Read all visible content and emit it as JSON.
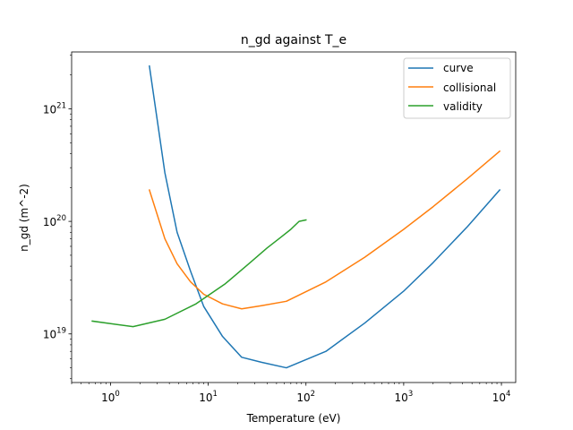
{
  "chart_data": {
    "type": "line",
    "title": "n_gd against T_e",
    "xlabel": "Temperature (eV)",
    "ylabel": "n_gd (m^-2)",
    "xscale": "log",
    "yscale": "log",
    "xlim": [
      0.4,
      14000
    ],
    "ylim": [
      3.7e+18,
      3.2e+21
    ],
    "grid": false,
    "legend_position": "top-right",
    "x_ticks": [
      {
        "base": "10",
        "exp": "0",
        "value": 1
      },
      {
        "base": "10",
        "exp": "1",
        "value": 10
      },
      {
        "base": "10",
        "exp": "2",
        "value": 100
      },
      {
        "base": "10",
        "exp": "3",
        "value": 1000
      },
      {
        "base": "10",
        "exp": "4",
        "value": 10000
      }
    ],
    "y_ticks": [
      {
        "base": "10",
        "exp": "19",
        "value": 1e+19
      },
      {
        "base": "10",
        "exp": "20",
        "value": 1e+20
      },
      {
        "base": "10",
        "exp": "21",
        "value": 1e+21
      }
    ],
    "series": [
      {
        "name": "curve",
        "color": "#1f77b4",
        "x": [
          2.5,
          3.6,
          4.8,
          6.6,
          9,
          14,
          22,
          35,
          63,
          160,
          400,
          1000,
          2000,
          4500,
          9600
        ],
        "y": [
          2.4e+21,
          2.7e+20,
          8e+19,
          3.6e+19,
          1.75e+19,
          9.5e+18,
          6.2e+18,
          5.6e+18,
          5e+18,
          7e+18,
          1.25e+19,
          2.4e+19,
          4.3e+19,
          9e+19,
          1.9e+20
        ]
      },
      {
        "name": "collisional",
        "color": "#ff7f0e",
        "x": [
          2.5,
          3.6,
          4.8,
          6.6,
          9,
          14,
          22,
          35,
          63,
          160,
          400,
          1000,
          2000,
          4500,
          9600
        ],
        "y": [
          1.9e+20,
          7e+19,
          4.2e+19,
          2.9e+19,
          2.25e+19,
          1.85e+19,
          1.67e+19,
          1.78e+19,
          1.95e+19,
          2.9e+19,
          4.8e+19,
          8.5e+19,
          1.35e+20,
          2.4e+20,
          4.2e+20
        ]
      },
      {
        "name": "validity",
        "color": "#2ca02c",
        "x": [
          0.65,
          1.7,
          3.6,
          7.5,
          15,
          26,
          40,
          55,
          70,
          85,
          100
        ],
        "y": [
          1.3e+19,
          1.16e+19,
          1.35e+19,
          1.85e+19,
          2.8e+19,
          4.2e+19,
          5.8e+19,
          7.2e+19,
          8.5e+19,
          1e+20,
          1.03e+20
        ]
      }
    ]
  }
}
